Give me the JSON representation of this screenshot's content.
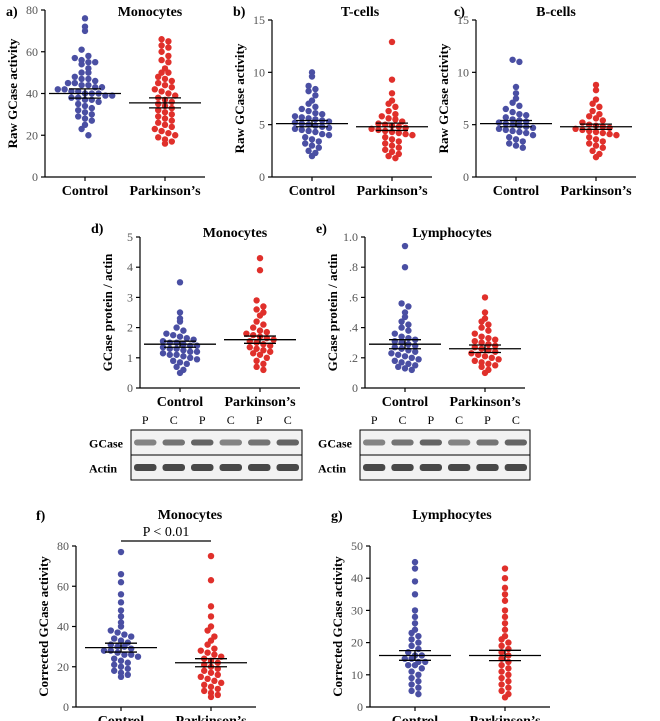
{
  "colors": {
    "control": "#4a4fa3",
    "parkinsons": "#e0302b",
    "axis": "#000000",
    "blot_bg": "#f2f2f2",
    "band": "#2a2a2a"
  },
  "chart_data": [
    {
      "type": "scatter",
      "panel": "a)",
      "title": "Monocytes",
      "ylabel": "Raw GCase activity",
      "categories": [
        "Control",
        "Parkinson’s"
      ],
      "ylim": [
        0,
        80
      ],
      "yticks": [
        "0",
        "20",
        "40",
        "60",
        "80"
      ],
      "ytick_values": [
        0,
        20,
        40,
        60,
        80
      ],
      "series": [
        {
          "category": "Control",
          "mean": 40,
          "sem": 2.2,
          "values": [
            76,
            72,
            70,
            61,
            58,
            57,
            56,
            55,
            55,
            54,
            52,
            50,
            50,
            48,
            47,
            47,
            46,
            45,
            45,
            44,
            44,
            43,
            43,
            42,
            42,
            41,
            41,
            40,
            40,
            40,
            39,
            39,
            38,
            38,
            37,
            37,
            36,
            35,
            34,
            33,
            32,
            31,
            30,
            29,
            28,
            27,
            25,
            23,
            20
          ]
        },
        {
          "category": "Parkinson’s",
          "mean": 35.5,
          "sem": 2.4,
          "values": [
            66,
            65,
            63,
            62,
            60,
            58,
            56,
            55,
            52,
            50,
            50,
            48,
            47,
            46,
            45,
            44,
            43,
            42,
            41,
            40,
            39,
            38,
            37,
            36,
            35,
            34,
            33,
            32,
            31,
            30,
            29,
            28,
            27,
            26,
            25,
            24,
            23,
            22,
            21,
            20,
            19,
            18,
            17,
            16
          ]
        }
      ]
    },
    {
      "type": "scatter",
      "panel": "b)",
      "title": "T-cells",
      "ylabel": "Raw GCase activity",
      "categories": [
        "Control",
        "Parkinson’s"
      ],
      "ylim": [
        0,
        15
      ],
      "yticks": [
        "0",
        "5",
        "10",
        "15"
      ],
      "ytick_values": [
        0,
        5,
        10,
        15
      ],
      "series": [
        {
          "category": "Control",
          "mean": 5.1,
          "sem": 0.3,
          "values": [
            10.0,
            9.6,
            8.7,
            8.4,
            8.2,
            7.8,
            7.3,
            7.0,
            6.7,
            6.5,
            6.3,
            6.1,
            6.0,
            5.8,
            5.7,
            5.6,
            5.5,
            5.4,
            5.3,
            5.2,
            5.1,
            5.0,
            4.9,
            4.8,
            4.7,
            4.6,
            4.5,
            4.4,
            4.3,
            4.1,
            4.0,
            3.8,
            3.6,
            3.4,
            3.2,
            3.0,
            2.8,
            2.5,
            2.3,
            2.0
          ]
        },
        {
          "category": "Parkinson’s",
          "mean": 4.8,
          "sem": 0.35,
          "values": [
            12.9,
            9.3,
            8.0,
            7.3,
            7.0,
            6.7,
            6.3,
            6.0,
            5.8,
            5.6,
            5.5,
            5.3,
            5.1,
            5.0,
            4.9,
            4.8,
            4.7,
            4.6,
            4.5,
            4.4,
            4.3,
            4.2,
            4.1,
            4.0,
            3.8,
            3.6,
            3.4,
            3.2,
            3.0,
            2.8,
            2.6,
            2.4,
            2.2,
            2.0,
            1.8
          ]
        }
      ]
    },
    {
      "type": "scatter",
      "panel": "c)",
      "title": "B-cells",
      "ylabel": "Raw GCase activity",
      "categories": [
        "Control",
        "Parkinson’s"
      ],
      "ylim": [
        0,
        15
      ],
      "yticks": [
        "0",
        "5",
        "10",
        "15"
      ],
      "ytick_values": [
        0,
        5,
        10,
        15
      ],
      "series": [
        {
          "category": "Control",
          "mean": 5.1,
          "sem": 0.3,
          "values": [
            11.2,
            11.0,
            8.6,
            8.0,
            7.5,
            7.1,
            6.8,
            6.5,
            6.2,
            6.0,
            5.9,
            5.7,
            5.5,
            5.4,
            5.3,
            5.2,
            5.1,
            5.0,
            4.9,
            4.8,
            4.7,
            4.6,
            4.5,
            4.4,
            4.3,
            4.2,
            4.0,
            3.8,
            3.6,
            3.4,
            3.2,
            3.0,
            2.8
          ]
        },
        {
          "category": "Parkinson’s",
          "mean": 4.8,
          "sem": 0.25,
          "values": [
            8.8,
            8.3,
            7.4,
            7.0,
            6.7,
            6.3,
            6.0,
            5.8,
            5.6,
            5.4,
            5.2,
            5.0,
            4.9,
            4.8,
            4.7,
            4.6,
            4.5,
            4.4,
            4.3,
            4.2,
            4.1,
            4.0,
            3.8,
            3.6,
            3.4,
            3.2,
            3.0,
            2.8,
            2.5,
            2.2,
            1.9
          ]
        }
      ]
    },
    {
      "type": "scatter",
      "panel": "d)",
      "title": "Monocytes",
      "ylabel": "GCase protein / actin",
      "categories": [
        "Control",
        "Parkinson’s"
      ],
      "ylim": [
        0,
        5
      ],
      "yticks": [
        "0",
        "1",
        "2",
        "3",
        "4",
        "5"
      ],
      "ytick_values": [
        0,
        1,
        2,
        3,
        4,
        5
      ],
      "series": [
        {
          "category": "Control",
          "mean": 1.45,
          "sem": 0.1,
          "values": [
            3.5,
            2.5,
            2.3,
            2.2,
            2.0,
            1.9,
            1.8,
            1.75,
            1.7,
            1.65,
            1.6,
            1.55,
            1.5,
            1.5,
            1.45,
            1.4,
            1.4,
            1.35,
            1.3,
            1.3,
            1.25,
            1.2,
            1.2,
            1.15,
            1.1,
            1.1,
            1.05,
            1.0,
            0.95,
            0.9,
            0.85,
            0.8,
            0.7,
            0.6,
            0.5
          ]
        },
        {
          "category": "Parkinson’s",
          "mean": 1.6,
          "sem": 0.12,
          "values": [
            4.3,
            3.9,
            2.9,
            2.7,
            2.6,
            2.5,
            2.4,
            2.2,
            2.1,
            2.0,
            1.9,
            1.85,
            1.8,
            1.75,
            1.7,
            1.65,
            1.6,
            1.55,
            1.5,
            1.45,
            1.4,
            1.35,
            1.3,
            1.25,
            1.2,
            1.15,
            1.1,
            1.0,
            0.9,
            0.8,
            0.7,
            0.6
          ]
        }
      ]
    },
    {
      "type": "scatter",
      "panel": "e)",
      "title": "Lymphocytes",
      "ylabel": "GCase protein / actin",
      "categories": [
        "Control",
        "Parkinson’s"
      ],
      "ylim": [
        0,
        1.0
      ],
      "yticks": [
        "0",
        ".2",
        ".4",
        ".6",
        ".8",
        "1.0"
      ],
      "ytick_values": [
        0,
        0.2,
        0.4,
        0.6,
        0.8,
        1.0
      ],
      "series": [
        {
          "category": "Control",
          "mean": 0.29,
          "sem": 0.03,
          "values": [
            0.94,
            0.8,
            0.56,
            0.54,
            0.5,
            0.47,
            0.44,
            0.42,
            0.4,
            0.38,
            0.36,
            0.34,
            0.33,
            0.32,
            0.31,
            0.3,
            0.29,
            0.28,
            0.27,
            0.26,
            0.25,
            0.24,
            0.23,
            0.22,
            0.21,
            0.2,
            0.19,
            0.18,
            0.17,
            0.16,
            0.15,
            0.14,
            0.13,
            0.12
          ]
        },
        {
          "category": "Parkinson’s",
          "mean": 0.26,
          "sem": 0.025,
          "values": [
            0.6,
            0.5,
            0.46,
            0.44,
            0.42,
            0.4,
            0.38,
            0.36,
            0.34,
            0.33,
            0.32,
            0.31,
            0.3,
            0.29,
            0.28,
            0.27,
            0.26,
            0.25,
            0.24,
            0.23,
            0.22,
            0.21,
            0.2,
            0.19,
            0.18,
            0.17,
            0.16,
            0.15,
            0.14,
            0.12,
            0.1
          ]
        }
      ]
    },
    {
      "type": "scatter",
      "panel": "f)",
      "title": "Monocytes",
      "ylabel": "Corrected GCase activity",
      "categories": [
        "Control",
        "Parkinson’s"
      ],
      "annotation": "P < 0.01",
      "ylim": [
        0,
        80
      ],
      "yticks": [
        "0",
        "20",
        "40",
        "60",
        "80"
      ],
      "ytick_values": [
        0,
        20,
        40,
        60,
        80
      ],
      "series": [
        {
          "category": "Control",
          "mean": 29.5,
          "sem": 2.2,
          "values": [
            77,
            66,
            62,
            56,
            52,
            48,
            45,
            42,
            40,
            38,
            37,
            36,
            35,
            34,
            33,
            32,
            31,
            30,
            30,
            29,
            28,
            28,
            27,
            26,
            26,
            25,
            24,
            23,
            22,
            21,
            20,
            19,
            18,
            17,
            16,
            15
          ]
        },
        {
          "category": "Parkinson’s",
          "mean": 22,
          "sem": 2.0,
          "values": [
            75,
            63,
            50,
            45,
            40,
            38,
            35,
            33,
            31,
            29,
            28,
            27,
            26,
            25,
            24,
            23,
            22,
            21,
            20,
            19,
            18,
            17,
            16,
            15,
            14,
            13,
            12,
            11,
            10,
            9,
            8,
            7,
            6,
            5
          ]
        }
      ]
    },
    {
      "type": "scatter",
      "panel": "g)",
      "title": "Lymphocytes",
      "ylabel": "Corrected GCase activity",
      "categories": [
        "Control",
        "Parkinson’s"
      ],
      "ylim": [
        0,
        50
      ],
      "yticks": [
        "0",
        "10",
        "20",
        "30",
        "40",
        "50"
      ],
      "ytick_values": [
        0,
        10,
        20,
        30,
        40,
        50
      ],
      "series": [
        {
          "category": "Control",
          "mean": 16,
          "sem": 1.5,
          "values": [
            45,
            43,
            39,
            35,
            30,
            28,
            26,
            24,
            23,
            22,
            21,
            20,
            19,
            18,
            17,
            16,
            16,
            15,
            15,
            14,
            14,
            13,
            13,
            12,
            11,
            10,
            9,
            8,
            7,
            6,
            5,
            4
          ]
        },
        {
          "category": "Parkinson’s",
          "mean": 16,
          "sem": 1.6,
          "values": [
            43,
            40,
            37,
            35,
            33,
            30,
            28,
            26,
            24,
            22,
            21,
            20,
            19,
            18,
            17,
            16,
            15,
            14,
            13,
            12,
            11,
            10,
            9,
            8,
            7,
            6,
            5,
            4,
            3
          ]
        }
      ]
    }
  ],
  "blots": [
    {
      "panel": "d)",
      "lanes": [
        "P",
        "C",
        "P",
        "C",
        "P",
        "C"
      ],
      "rows": [
        "GCase",
        "Actin"
      ]
    },
    {
      "panel": "e)",
      "lanes": [
        "P",
        "C",
        "P",
        "C",
        "P",
        "C"
      ],
      "rows": [
        "GCase",
        "Actin"
      ]
    }
  ]
}
